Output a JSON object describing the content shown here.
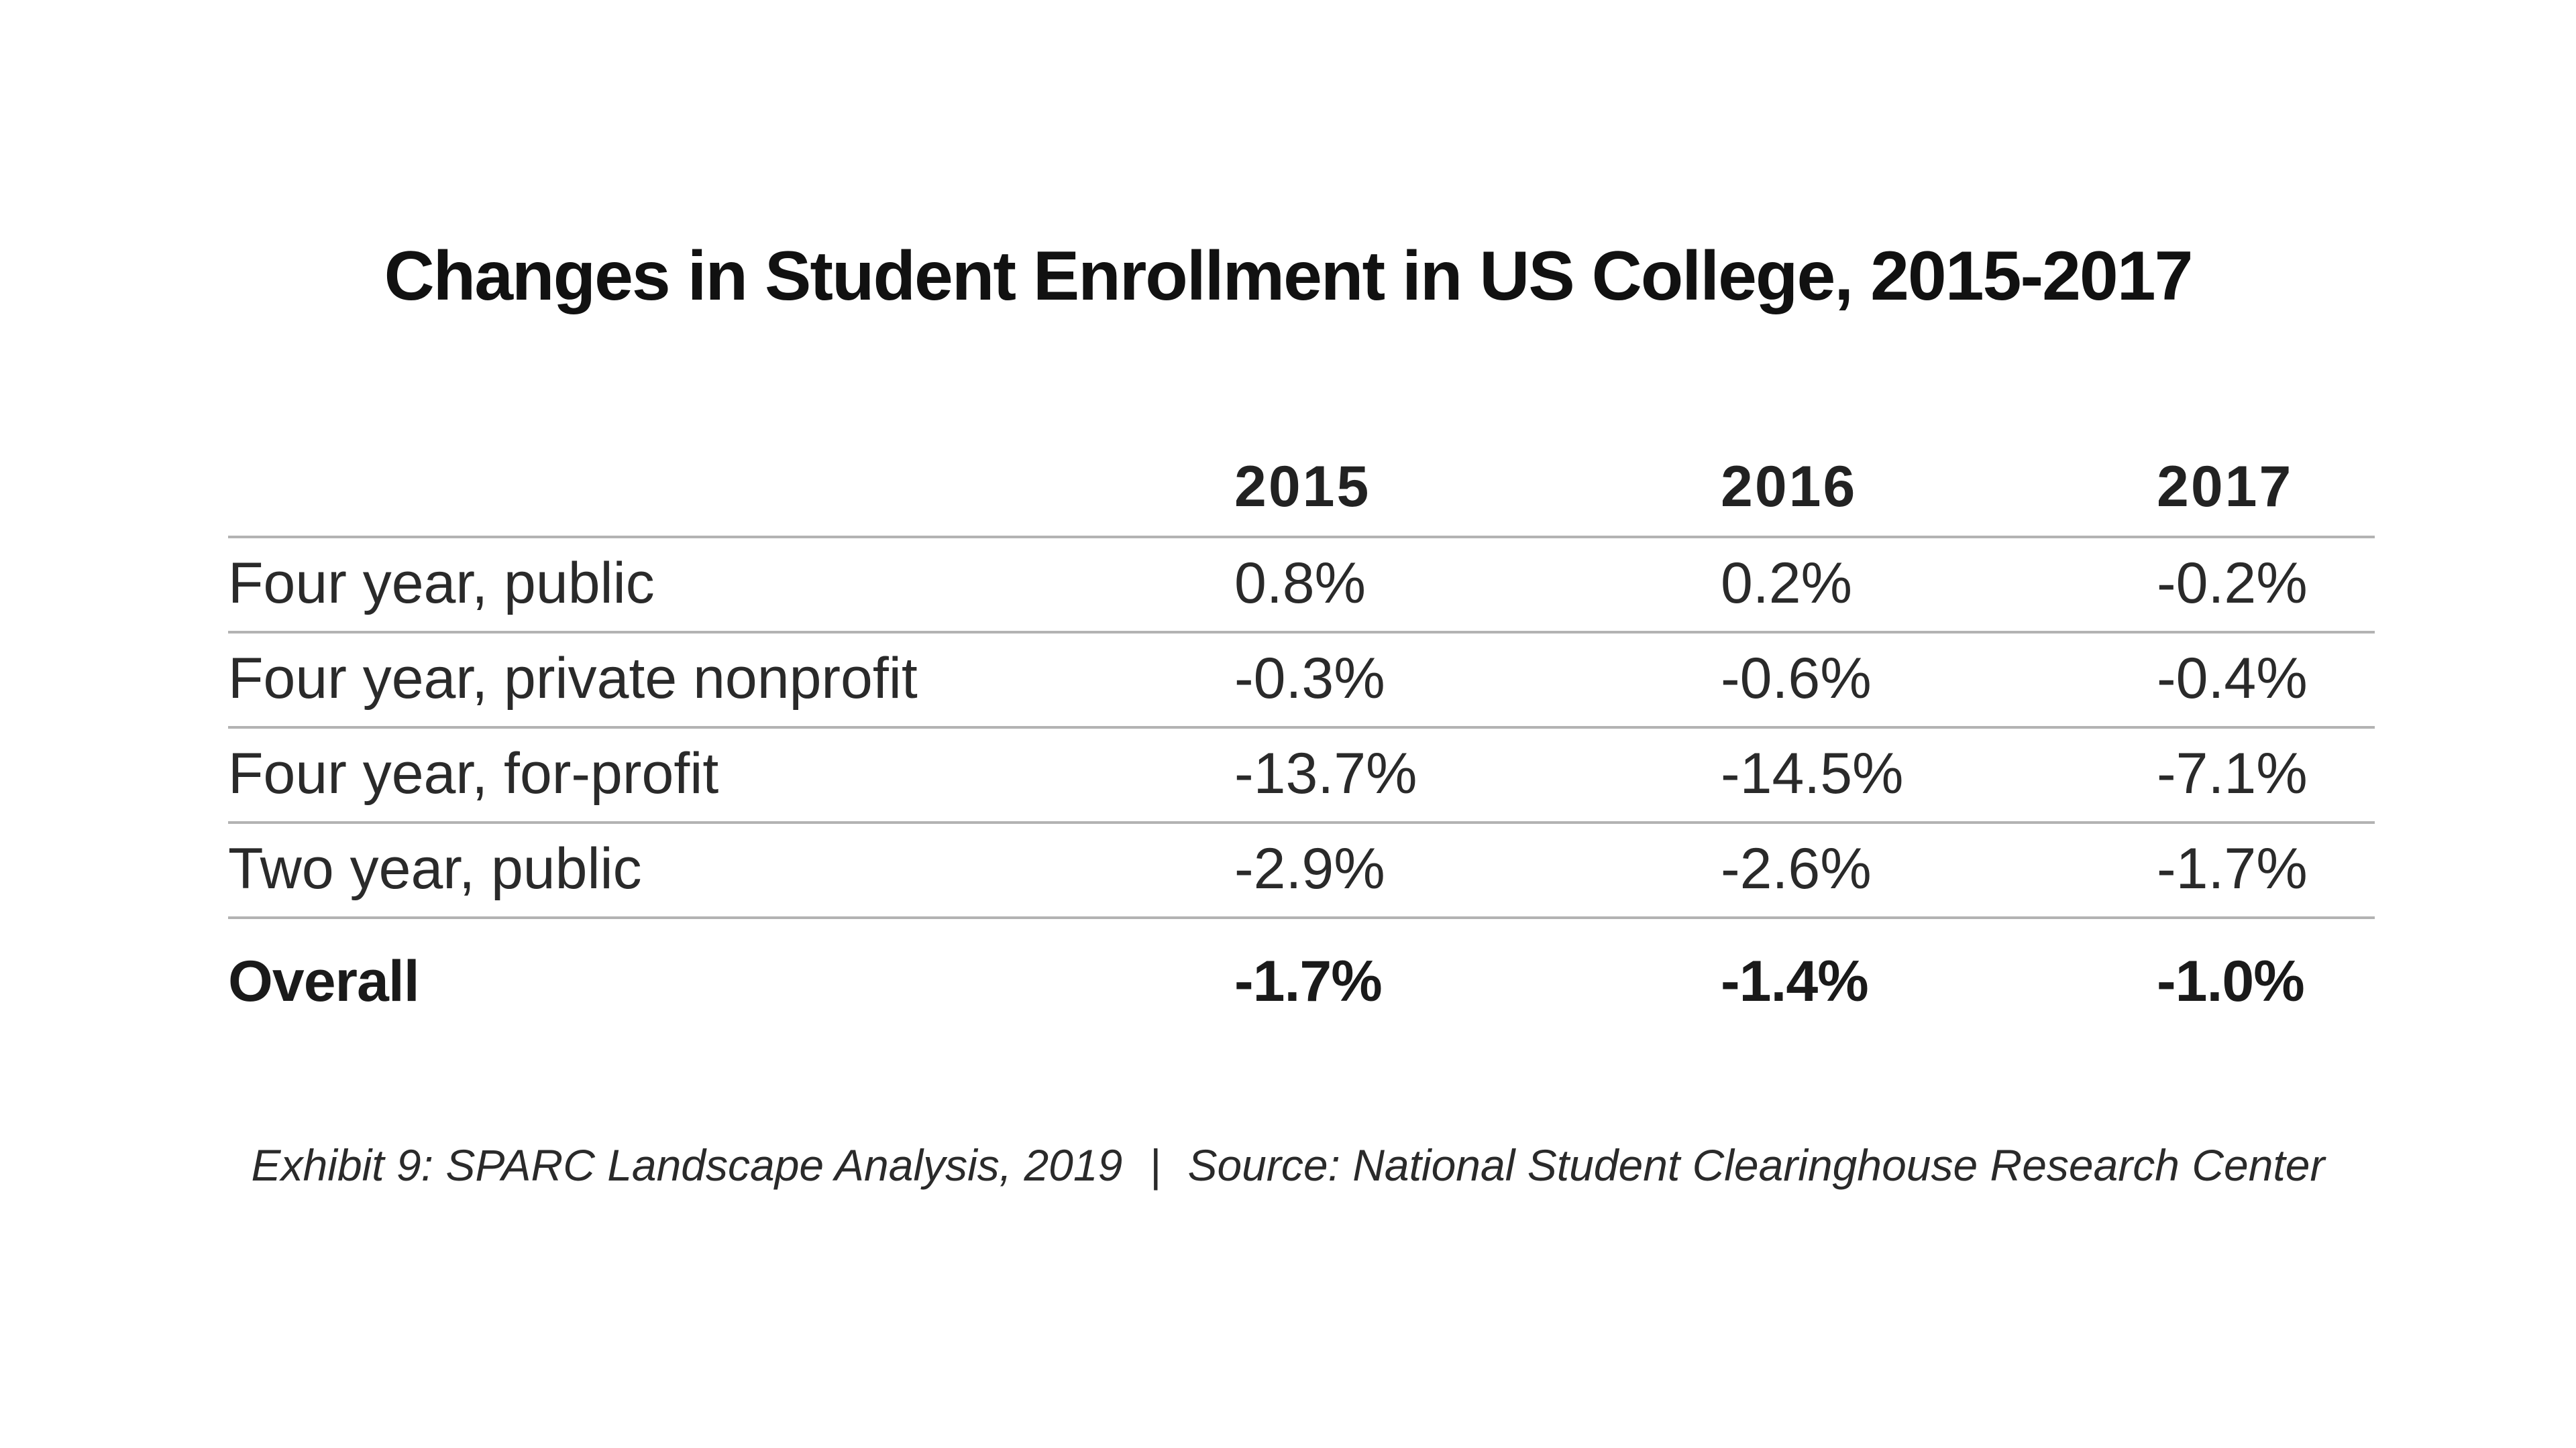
{
  "chart_data": {
    "type": "table",
    "title": "Changes in Student Enrollment in US College, 2015-2017",
    "columns": [
      "2015",
      "2016",
      "2017"
    ],
    "rows": [
      {
        "label": "Four year, public",
        "values": [
          "0.8%",
          "0.2%",
          "-0.2%"
        ]
      },
      {
        "label": "Four year, private nonprofit",
        "values": [
          "-0.3%",
          "-0.6%",
          "-0.4%"
        ]
      },
      {
        "label": "Four year, for-profit",
        "values": [
          "-13.7%",
          "-14.5%",
          "-7.1%"
        ]
      },
      {
        "label": "Two year, public",
        "values": [
          "-2.9%",
          "-2.6%",
          "-1.7%"
        ]
      }
    ],
    "total": {
      "label": "Overall",
      "values": [
        "-1.7%",
        "-1.4%",
        "-1.0%"
      ]
    }
  },
  "caption": {
    "exhibit": "Exhibit 9: SPARC Landscape Analysis, 2019",
    "separator": "|",
    "source": "Source: National Student Clearinghouse Research Center"
  }
}
